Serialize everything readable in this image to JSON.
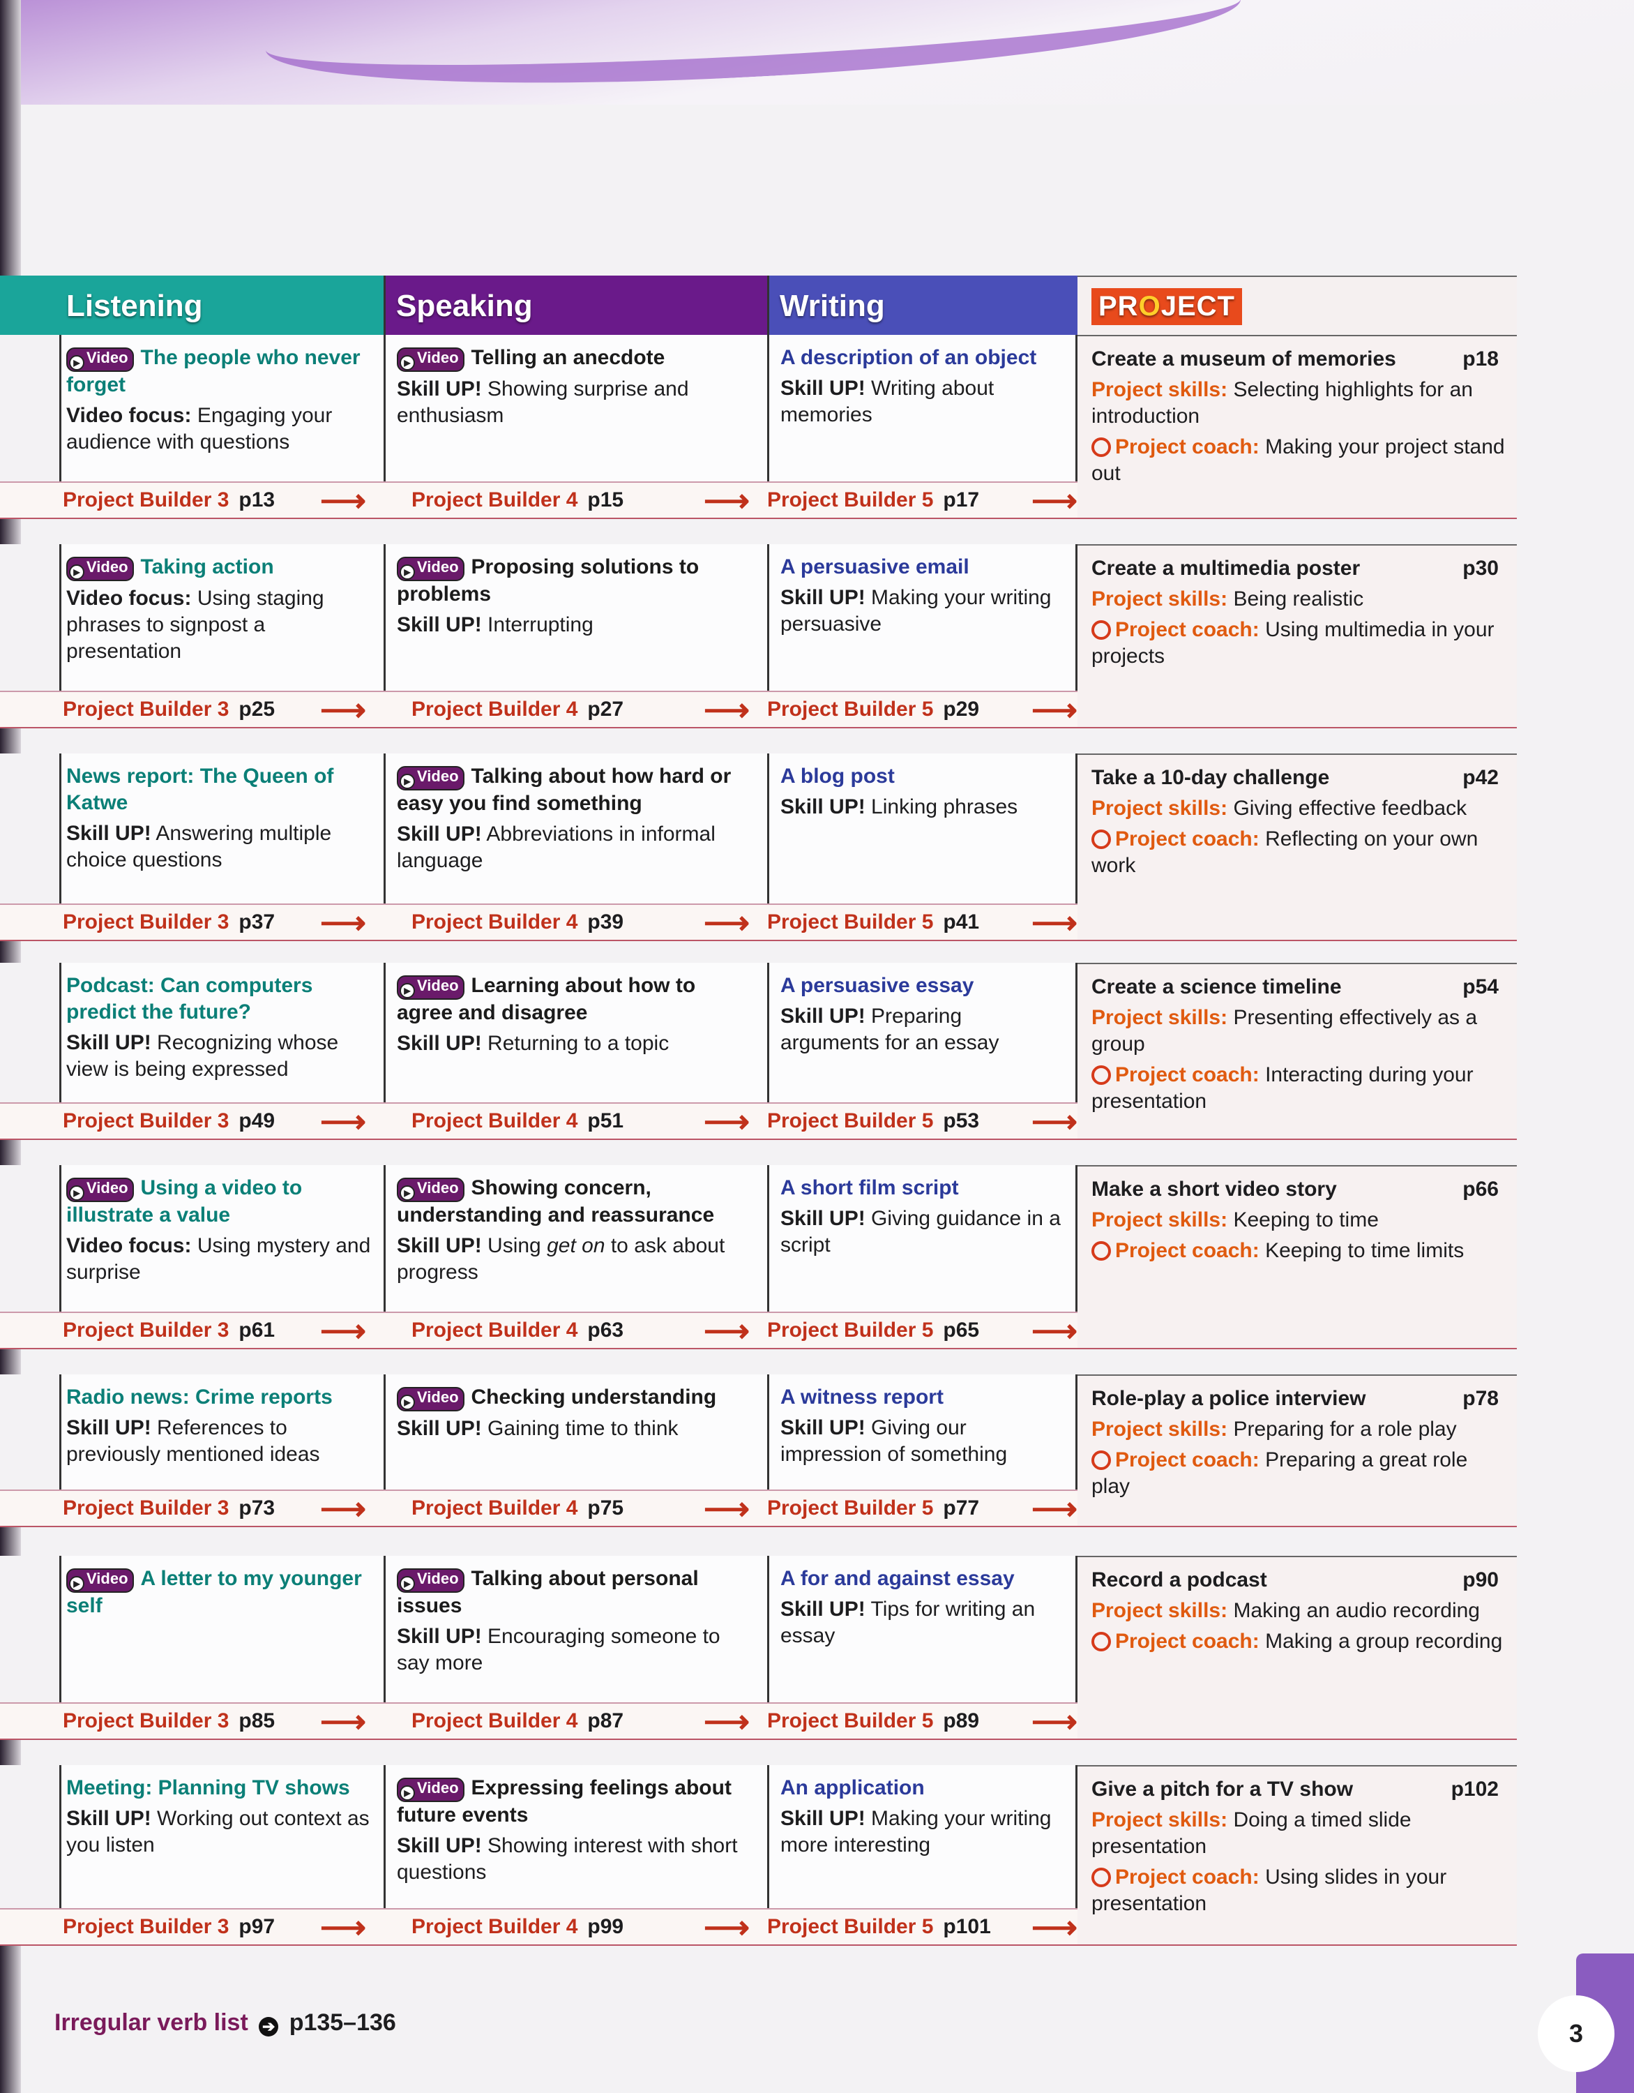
{
  "headers": {
    "listening": "Listening",
    "speaking": "Speaking",
    "writing": "Writing",
    "project_pre": "PR",
    "project_o": "O",
    "project_post": "JECT"
  },
  "video_label": "Video",
  "skill_label": "Skill UP!",
  "project_skills_label": "Project skills:",
  "project_coach_label": "Project coach:",
  "colors": {
    "listening": "#1aa59a",
    "speaking": "#6a1a8a",
    "writing": "#4a4fb8",
    "project": "#e84a1c",
    "project_builder": "#c0311b"
  },
  "rows": [
    {
      "listening": {
        "video": true,
        "title": "The people who never forget",
        "label": "Video focus:",
        "text": "Engaging your audience with questions"
      },
      "speaking": {
        "video": true,
        "title": "Telling an anecdote",
        "text": "Showing surprise and enthusiasm"
      },
      "writing": {
        "title": "A description of an object",
        "text": "Writing about memories"
      },
      "project": {
        "title": "Create a museum of memories",
        "page": "p18",
        "skills": "Selecting highlights for an introduction",
        "coach": "Making your project stand out"
      },
      "builders": [
        {
          "label": "Project Builder 3",
          "page": "p13"
        },
        {
          "label": "Project Builder 4",
          "page": "p15"
        },
        {
          "label": "Project Builder 5",
          "page": "p17"
        }
      ]
    },
    {
      "listening": {
        "video": true,
        "title": "Taking action",
        "label": "Video focus:",
        "text": "Using staging phrases to signpost a presentation"
      },
      "speaking": {
        "video": true,
        "title": "Proposing solutions to problems",
        "text": "Interrupting"
      },
      "writing": {
        "title": "A persuasive email",
        "text": "Making your writing persuasive"
      },
      "project": {
        "title": "Create a multimedia poster",
        "page": "p30",
        "skills": "Being realistic",
        "coach": "Using multimedia in your projects"
      },
      "builders": [
        {
          "label": "Project Builder 3",
          "page": "p25"
        },
        {
          "label": "Project Builder 4",
          "page": "p27"
        },
        {
          "label": "Project Builder 5",
          "page": "p29"
        }
      ]
    },
    {
      "listening": {
        "video": false,
        "title": "News report: The Queen of Katwe",
        "label": "Skill UP!",
        "text": "Answering multiple choice questions"
      },
      "speaking": {
        "video": true,
        "title": "Talking about how hard or easy you find something",
        "text": "Abbreviations in informal language"
      },
      "writing": {
        "title": "A blog post",
        "text": "Linking phrases"
      },
      "project": {
        "title": "Take a 10-day challenge",
        "page": "p42",
        "skills": "Giving effective feedback",
        "coach": "Reflecting on your own work"
      },
      "builders": [
        {
          "label": "Project Builder 3",
          "page": "p37"
        },
        {
          "label": "Project Builder 4",
          "page": "p39"
        },
        {
          "label": "Project Builder 5",
          "page": "p41"
        }
      ]
    },
    {
      "listening": {
        "video": false,
        "title": "Podcast: Can computers predict the future?",
        "label": "Skill UP!",
        "text": "Recognizing whose view is being expressed"
      },
      "speaking": {
        "video": true,
        "title": "Learning about how to agree and disagree",
        "text": "Returning to a topic"
      },
      "writing": {
        "title": "A persuasive essay",
        "text": "Preparing arguments for an essay"
      },
      "project": {
        "title": "Create a science timeline",
        "page": "p54",
        "skills": "Presenting effectively as a group",
        "coach": "Interacting during your presentation"
      },
      "builders": [
        {
          "label": "Project Builder 3",
          "page": "p49"
        },
        {
          "label": "Project Builder 4",
          "page": "p51"
        },
        {
          "label": "Project Builder 5",
          "page": "p53"
        }
      ]
    },
    {
      "listening": {
        "video": true,
        "title": "Using a video to illustrate a value",
        "label": "Video focus:",
        "text": "Using mystery and surprise"
      },
      "speaking": {
        "video": true,
        "title": "Showing concern, understanding and reassurance",
        "text": "Using ",
        "text_em": "get on",
        "text_after": " to ask about progress"
      },
      "writing": {
        "title": "A short film script",
        "text": "Giving guidance in a script"
      },
      "project": {
        "title": "Make a short video story",
        "page": "p66",
        "skills": "Keeping to time",
        "coach": "Keeping to time limits"
      },
      "builders": [
        {
          "label": "Project Builder 3",
          "page": "p61"
        },
        {
          "label": "Project Builder 4",
          "page": "p63"
        },
        {
          "label": "Project Builder 5",
          "page": "p65"
        }
      ]
    },
    {
      "listening": {
        "video": false,
        "title": "Radio news: Crime reports",
        "label": "Skill UP!",
        "text": "References to previously mentioned ideas"
      },
      "speaking": {
        "video": true,
        "title": "Checking understanding",
        "text": "Gaining time to think"
      },
      "writing": {
        "title": "A witness report",
        "text": "Giving our impression of something"
      },
      "project": {
        "title": "Role-play a police interview",
        "page": "p78",
        "skills": "Preparing for a role play",
        "coach": "Preparing a great role play"
      },
      "builders": [
        {
          "label": "Project Builder 3",
          "page": "p73"
        },
        {
          "label": "Project Builder 4",
          "page": "p75"
        },
        {
          "label": "Project Builder 5",
          "page": "p77"
        }
      ]
    },
    {
      "listening": {
        "video": true,
        "title": "A letter to my younger self"
      },
      "speaking": {
        "video": true,
        "title": "Talking about personal issues",
        "text": "Encouraging someone to say more"
      },
      "writing": {
        "title": "A for and against essay",
        "text": "Tips for writing an essay"
      },
      "project": {
        "title": "Record a podcast",
        "page": "p90",
        "skills": "Making an audio recording",
        "coach": "Making a group recording"
      },
      "builders": [
        {
          "label": "Project Builder 3",
          "page": "p85"
        },
        {
          "label": "Project Builder 4",
          "page": "p87"
        },
        {
          "label": "Project Builder 5",
          "page": "p89"
        }
      ]
    },
    {
      "listening": {
        "video": false,
        "title": "Meeting: Planning TV shows",
        "label": "Skill UP!",
        "text": "Working out context as you listen"
      },
      "speaking": {
        "video": true,
        "title": "Expressing feelings about future events",
        "text": "Showing interest with short questions"
      },
      "writing": {
        "title": "An application",
        "text": "Making your writing more interesting"
      },
      "project": {
        "title": "Give a pitch for a TV show",
        "page": "p102",
        "skills": "Doing a timed slide presentation",
        "coach": "Using slides in your presentation"
      },
      "builders": [
        {
          "label": "Project Builder 3",
          "page": "p97"
        },
        {
          "label": "Project Builder 4",
          "page": "p99"
        },
        {
          "label": "Project Builder 5",
          "page": "p101"
        }
      ]
    }
  ],
  "footer": {
    "label": "Irregular verb list",
    "pages": "p135–136",
    "page_number": "3"
  }
}
